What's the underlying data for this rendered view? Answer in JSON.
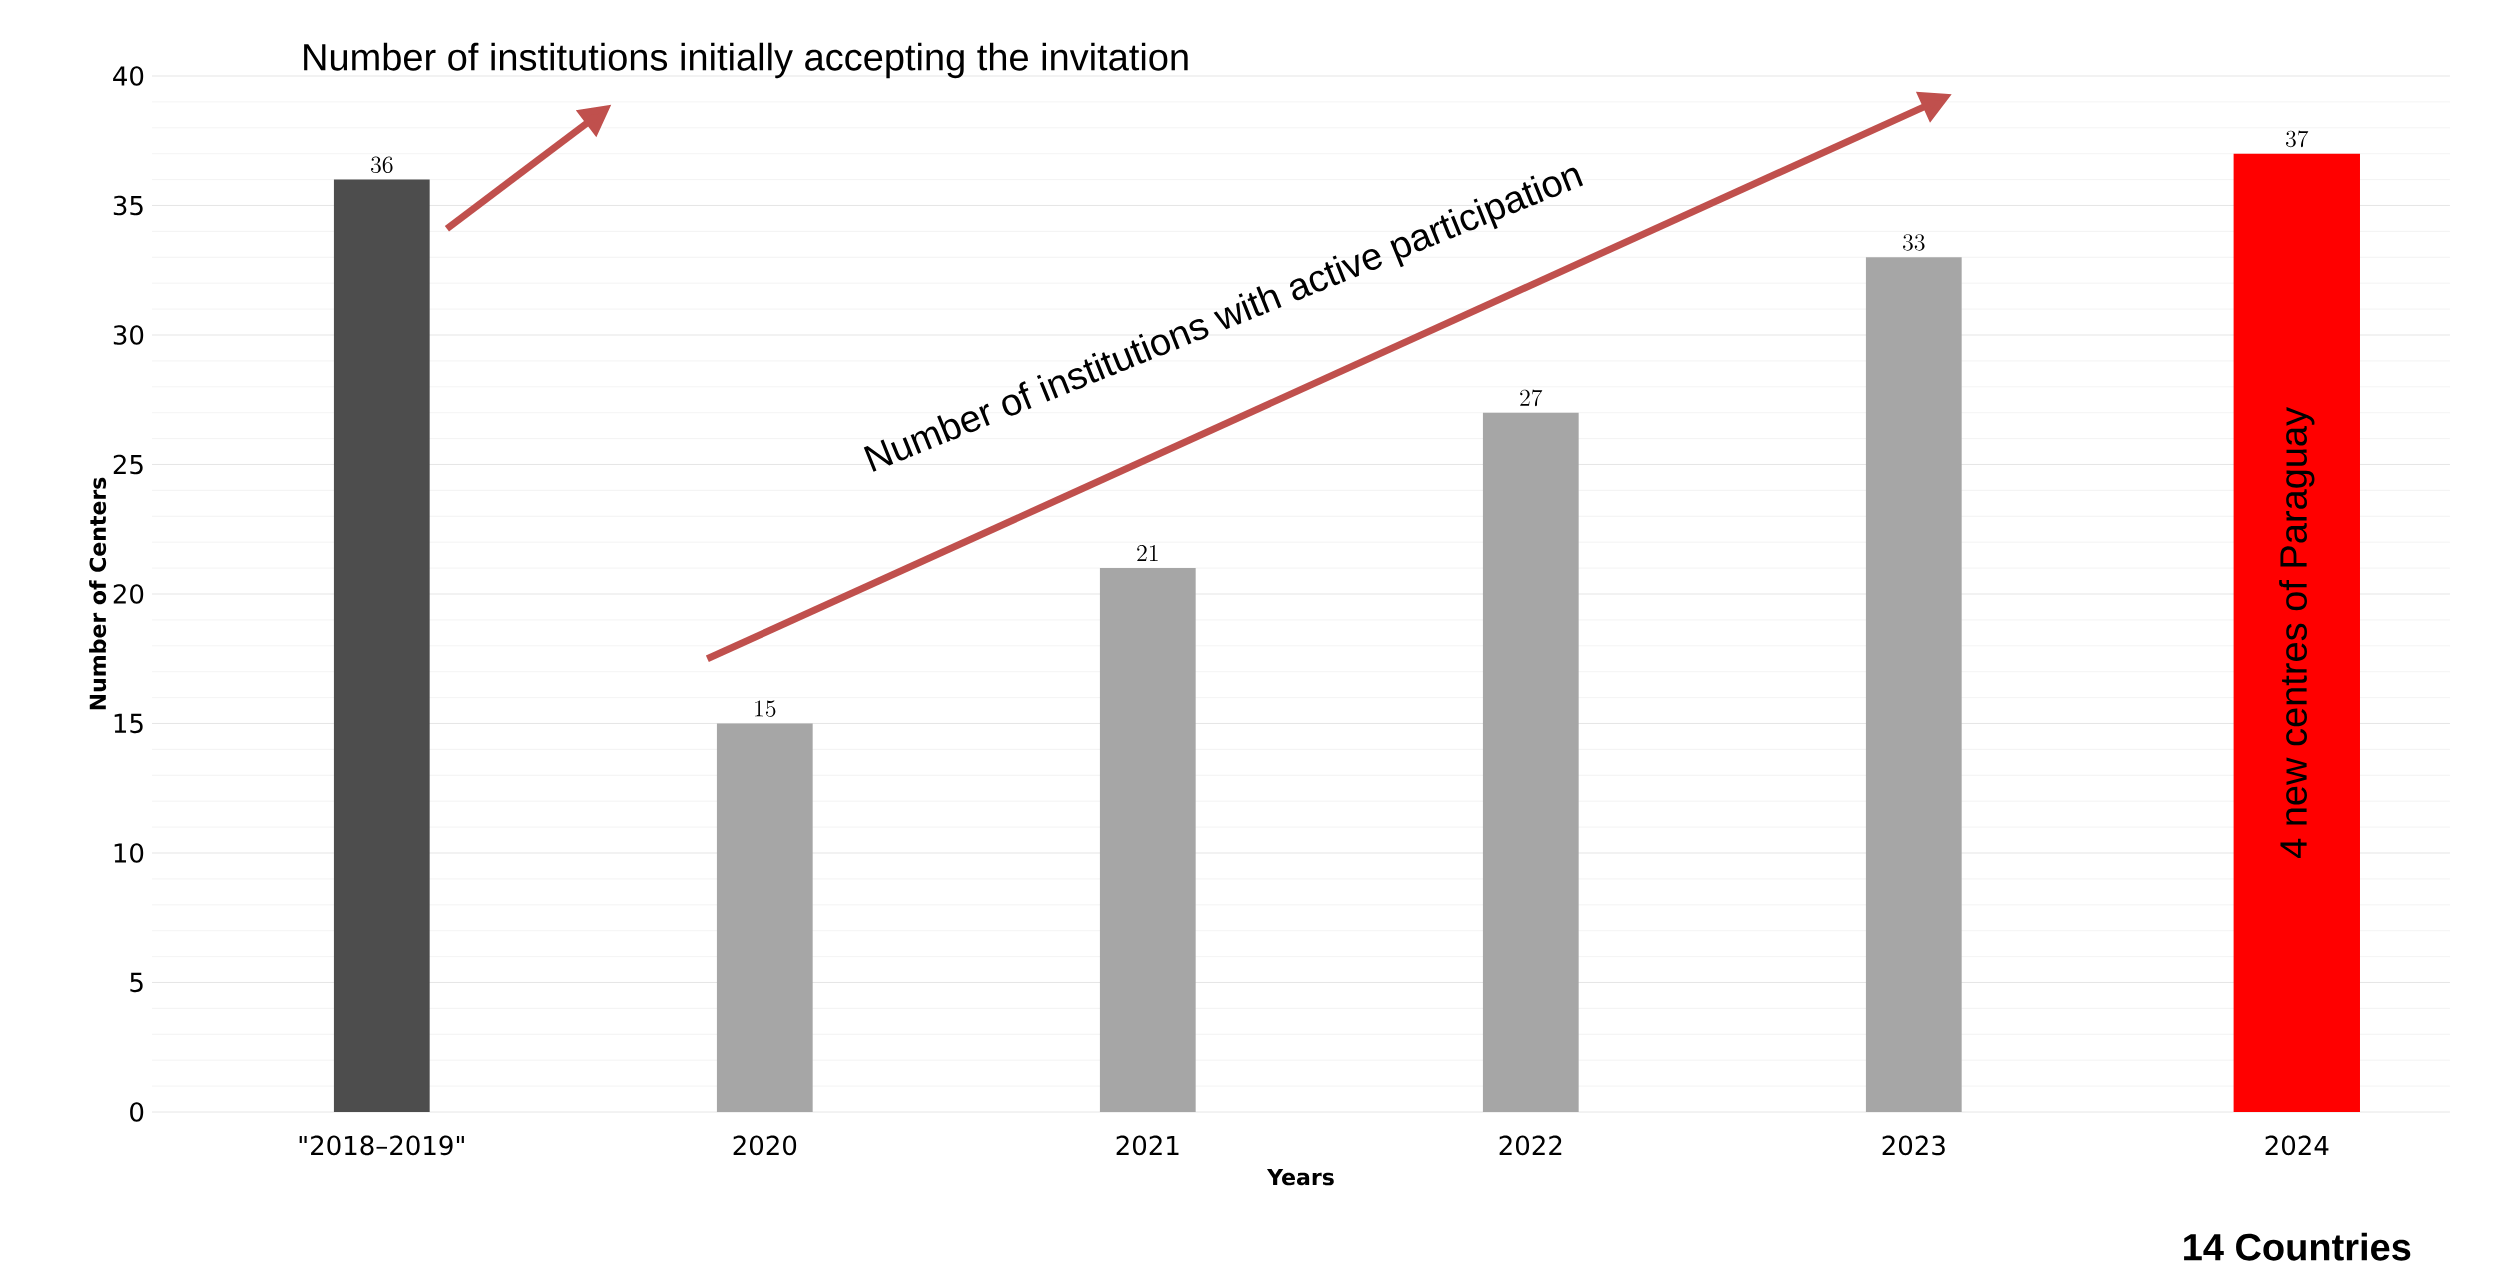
{
  "chart_data": {
    "type": "bar",
    "xlabel": "Years",
    "ylabel": "Number of Centers",
    "categories": [
      "\"2018–2019\"",
      "2020",
      "2021",
      "2022",
      "2023",
      "2024"
    ],
    "values": [
      36,
      15,
      21,
      27,
      33,
      37
    ],
    "colors": [
      "#4d4d4d",
      "#a6a6a6",
      "#a6a6a6",
      "#a6a6a6",
      "#a6a6a6",
      "#ff0000"
    ],
    "ylim": [
      0,
      40
    ],
    "yticks": [
      0,
      5,
      10,
      15,
      20,
      25,
      30,
      35,
      40
    ],
    "grid": "y",
    "data_labels": true,
    "annotations": [
      "Number of institutions initially accepting the invitation",
      "Number of institutions with active participation",
      "4 new centres of Paraguay",
      "14 Countries"
    ]
  }
}
